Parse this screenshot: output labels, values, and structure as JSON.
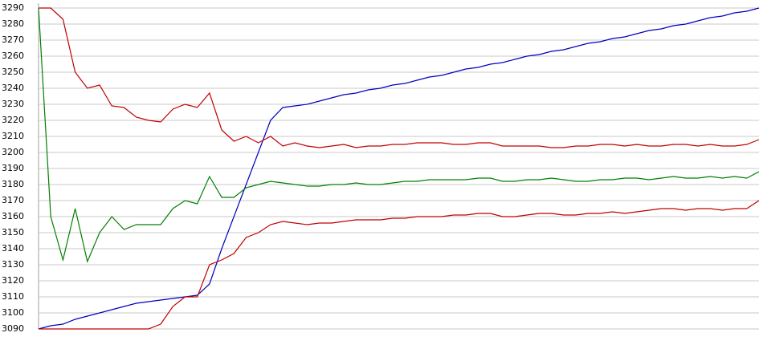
{
  "chart_data": {
    "type": "line",
    "ylim": [
      3090,
      3290
    ],
    "yticks": [
      3090,
      3100,
      3110,
      3120,
      3130,
      3140,
      3150,
      3160,
      3170,
      3180,
      3190,
      3200,
      3210,
      3220,
      3230,
      3240,
      3250,
      3260,
      3270,
      3280,
      3290
    ],
    "grid": true,
    "series": [
      {
        "color": "#0000c0",
        "values": [
          3090,
          3092,
          3093,
          3096,
          3098,
          3100,
          3102,
          3104,
          3106,
          3107,
          3108,
          3109,
          3110,
          3111,
          3118,
          3140,
          3160,
          3180,
          3200,
          3220,
          3228,
          3229,
          3230,
          3232,
          3234,
          3236,
          3237,
          3239,
          3240,
          3242,
          3243,
          3245,
          3247,
          3248,
          3250,
          3252,
          3253,
          3255,
          3256,
          3258,
          3260,
          3261,
          3263,
          3264,
          3266,
          3268,
          3269,
          3271,
          3272,
          3274,
          3276,
          3277,
          3279,
          3280,
          3282,
          3284,
          3285,
          3287,
          3288,
          3290
        ]
      },
      {
        "color": "#c00000",
        "values": [
          3290,
          3290,
          3283,
          3250,
          3240,
          3242,
          3229,
          3228,
          3222,
          3220,
          3219,
          3227,
          3230,
          3228,
          3237,
          3214,
          3207,
          3210,
          3206,
          3210,
          3204,
          3206,
          3204,
          3203,
          3204,
          3205,
          3203,
          3204,
          3204,
          3205,
          3205,
          3206,
          3206,
          3206,
          3205,
          3205,
          3206,
          3206,
          3204,
          3204,
          3204,
          3204,
          3203,
          3203,
          3204,
          3204,
          3205,
          3205,
          3204,
          3205,
          3204,
          3204,
          3205,
          3205,
          3204,
          3205,
          3204,
          3204,
          3205,
          3208
        ]
      },
      {
        "color": "#008000",
        "values": [
          3290,
          3160,
          3133,
          3165,
          3132,
          3150,
          3160,
          3152,
          3155,
          3155,
          3155,
          3165,
          3170,
          3168,
          3185,
          3172,
          3172,
          3178,
          3180,
          3182,
          3181,
          3180,
          3179,
          3179,
          3180,
          3180,
          3181,
          3180,
          3180,
          3181,
          3182,
          3182,
          3183,
          3183,
          3183,
          3183,
          3184,
          3184,
          3182,
          3182,
          3183,
          3183,
          3184,
          3183,
          3182,
          3182,
          3183,
          3183,
          3184,
          3184,
          3183,
          3184,
          3185,
          3184,
          3184,
          3185,
          3184,
          3185,
          3184,
          3188
        ]
      },
      {
        "color": "#c00000",
        "values": [
          3090,
          3090,
          3090,
          3090,
          3090,
          3090,
          3090,
          3090,
          3090,
          3090,
          3093,
          3104,
          3110,
          3110,
          3130,
          3133,
          3137,
          3147,
          3150,
          3155,
          3157,
          3156,
          3155,
          3156,
          3156,
          3157,
          3158,
          3158,
          3158,
          3159,
          3159,
          3160,
          3160,
          3160,
          3161,
          3161,
          3162,
          3162,
          3160,
          3160,
          3161,
          3162,
          3162,
          3161,
          3161,
          3162,
          3162,
          3163,
          3162,
          3163,
          3164,
          3165,
          3165,
          3164,
          3165,
          3165,
          3164,
          3165,
          3165,
          3170
        ]
      }
    ]
  }
}
